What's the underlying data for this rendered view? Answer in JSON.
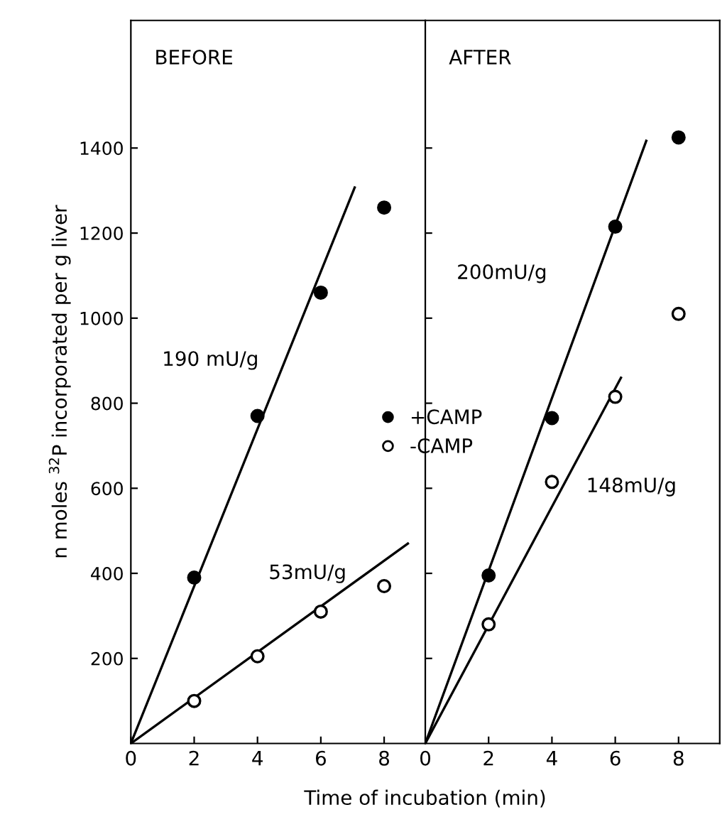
{
  "chart_data": [
    {
      "type": "scatter",
      "ylabel": "n moles $^{32}$P incorporated per g liver",
      "xlabel": "Time of incubation (min)",
      "xlim": [
        0,
        9.3
      ],
      "ylim": [
        0,
        1700
      ],
      "xticks": [
        0,
        2,
        4,
        6,
        8
      ],
      "yticks": [
        200,
        400,
        600,
        800,
        1000,
        1200,
        1400
      ],
      "legend": "right",
      "series": [
        {
          "name": "+CAMP",
          "color": "#000000",
          "marker": "circle",
          "x": [
            2,
            4,
            6,
            8
          ],
          "values": [
            390,
            770,
            1060,
            1260
          ]
        },
        {
          "name": "-CAMP",
          "color": "#000000",
          "marker": "circle",
          "x": [
            2,
            4,
            6,
            8
          ],
          "values": [
            100,
            205,
            310,
            370
          ]
        },
        {
          "type": "line",
          "color": "#000000",
          "x": [
            0,
            7.07
          ],
          "values": [
            0,
            1307
          ]
        },
        {
          "type": "line",
          "color": "#000000",
          "x": [
            0,
            8.75
          ],
          "values": [
            0,
            470
          ]
        }
      ],
      "annotations": [
        "BEFORE",
        "190 mU/g",
        "53mU/g"
      ]
    },
    {
      "type": "scatter",
      "xlim": [
        0,
        9.3
      ],
      "ylim": [
        0,
        1700
      ],
      "xticks": [
        0,
        2,
        4,
        6,
        8
      ],
      "yticks": [
        200,
        400,
        600,
        800,
        1000,
        1200,
        1400
      ],
      "tick_labels": "x",
      "series": [
        {
          "color": "#000000",
          "marker": "circle",
          "x": [
            2,
            4,
            6,
            8
          ],
          "values": [
            395,
            765,
            1215,
            1425
          ]
        },
        {
          "color": "#000000",
          "marker": "circle",
          "x": [
            2,
            4,
            6,
            8
          ],
          "values": [
            280,
            615,
            815,
            1010
          ]
        },
        {
          "type": "line",
          "color": "#000000",
          "x": [
            0,
            6.98
          ],
          "values": [
            0,
            1417
          ]
        },
        {
          "type": "line",
          "color": "#000000",
          "x": [
            0,
            6.18
          ],
          "values": [
            0,
            860
          ]
        }
      ],
      "annotations": [
        "AFTER",
        "200mU/g",
        "148mU/g"
      ]
    }
  ]
}
